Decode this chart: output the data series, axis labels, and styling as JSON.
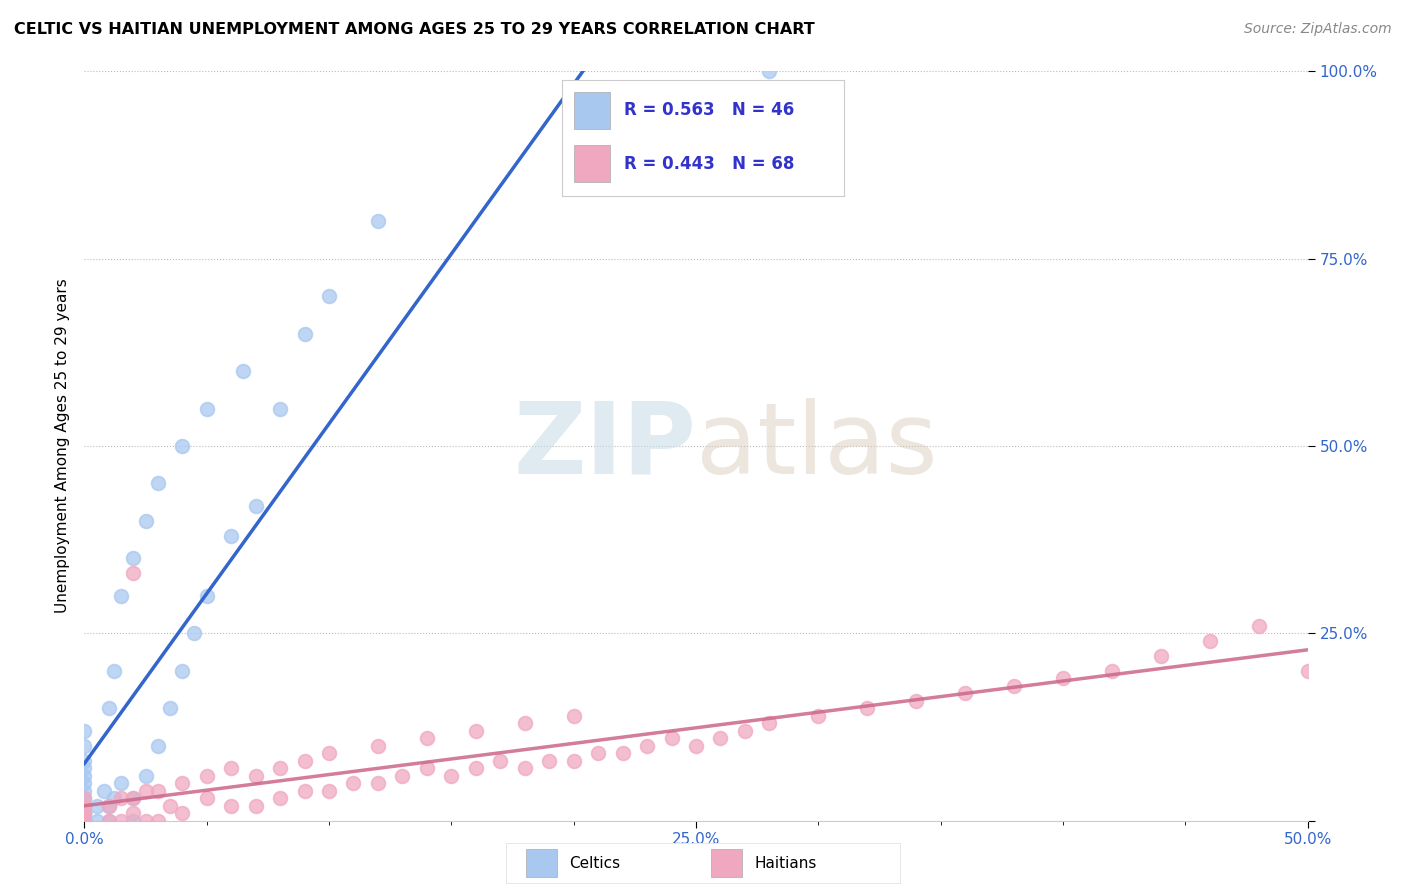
{
  "title": "CELTIC VS HAITIAN UNEMPLOYMENT AMONG AGES 25 TO 29 YEARS CORRELATION CHART",
  "source": "Source: ZipAtlas.com",
  "ylabel": "Unemployment Among Ages 25 to 29 years",
  "xlim": [
    0.0,
    0.5
  ],
  "ylim": [
    0.0,
    1.0
  ],
  "celtic_color": "#a8c8f0",
  "haitian_color": "#f0a8c0",
  "celtic_line_color": "#3366cc",
  "haitian_line_color": "#cc6688",
  "celtic_R": 0.563,
  "celtic_N": 46,
  "haitian_R": 0.443,
  "haitian_N": 68,
  "legend_text_color": "#3333cc",
  "background_color": "#ffffff",
  "watermark_color": "#ccdde8",
  "celtic_x": [
    0.0,
    0.0,
    0.0,
    0.0,
    0.0,
    0.0,
    0.0,
    0.0,
    0.0,
    0.0,
    0.0,
    0.0,
    0.0,
    0.0,
    0.0,
    0.005,
    0.005,
    0.008,
    0.01,
    0.01,
    0.01,
    0.012,
    0.012,
    0.015,
    0.015,
    0.02,
    0.02,
    0.02,
    0.025,
    0.025,
    0.03,
    0.03,
    0.035,
    0.04,
    0.04,
    0.045,
    0.05,
    0.05,
    0.06,
    0.065,
    0.07,
    0.08,
    0.09,
    0.1,
    0.12,
    0.28
  ],
  "celtic_y": [
    0.0,
    0.0,
    0.0,
    0.0,
    0.01,
    0.01,
    0.02,
    0.03,
    0.04,
    0.05,
    0.06,
    0.07,
    0.08,
    0.1,
    0.12,
    0.0,
    0.02,
    0.04,
    0.0,
    0.02,
    0.15,
    0.03,
    0.2,
    0.05,
    0.3,
    0.0,
    0.03,
    0.35,
    0.06,
    0.4,
    0.1,
    0.45,
    0.15,
    0.2,
    0.5,
    0.25,
    0.3,
    0.55,
    0.38,
    0.6,
    0.42,
    0.55,
    0.65,
    0.7,
    0.8,
    1.0
  ],
  "haitian_x": [
    0.0,
    0.0,
    0.0,
    0.0,
    0.0,
    0.0,
    0.0,
    0.0,
    0.01,
    0.01,
    0.015,
    0.015,
    0.02,
    0.02,
    0.025,
    0.025,
    0.03,
    0.03,
    0.035,
    0.04,
    0.04,
    0.05,
    0.05,
    0.06,
    0.06,
    0.07,
    0.07,
    0.08,
    0.08,
    0.09,
    0.09,
    0.1,
    0.1,
    0.11,
    0.12,
    0.12,
    0.13,
    0.14,
    0.14,
    0.15,
    0.16,
    0.16,
    0.17,
    0.18,
    0.18,
    0.19,
    0.2,
    0.2,
    0.21,
    0.22,
    0.23,
    0.24,
    0.25,
    0.26,
    0.27,
    0.28,
    0.3,
    0.32,
    0.34,
    0.36,
    0.38,
    0.4,
    0.42,
    0.44,
    0.46,
    0.48,
    0.5,
    0.02
  ],
  "haitian_y": [
    0.0,
    0.0,
    0.0,
    0.0,
    0.01,
    0.01,
    0.02,
    0.03,
    0.0,
    0.02,
    0.0,
    0.03,
    0.01,
    0.03,
    0.0,
    0.04,
    0.0,
    0.04,
    0.02,
    0.01,
    0.05,
    0.03,
    0.06,
    0.02,
    0.07,
    0.02,
    0.06,
    0.03,
    0.07,
    0.04,
    0.08,
    0.04,
    0.09,
    0.05,
    0.05,
    0.1,
    0.06,
    0.07,
    0.11,
    0.06,
    0.07,
    0.12,
    0.08,
    0.07,
    0.13,
    0.08,
    0.08,
    0.14,
    0.09,
    0.09,
    0.1,
    0.11,
    0.1,
    0.11,
    0.12,
    0.13,
    0.14,
    0.15,
    0.16,
    0.17,
    0.18,
    0.19,
    0.2,
    0.22,
    0.24,
    0.26,
    0.2,
    0.33
  ]
}
